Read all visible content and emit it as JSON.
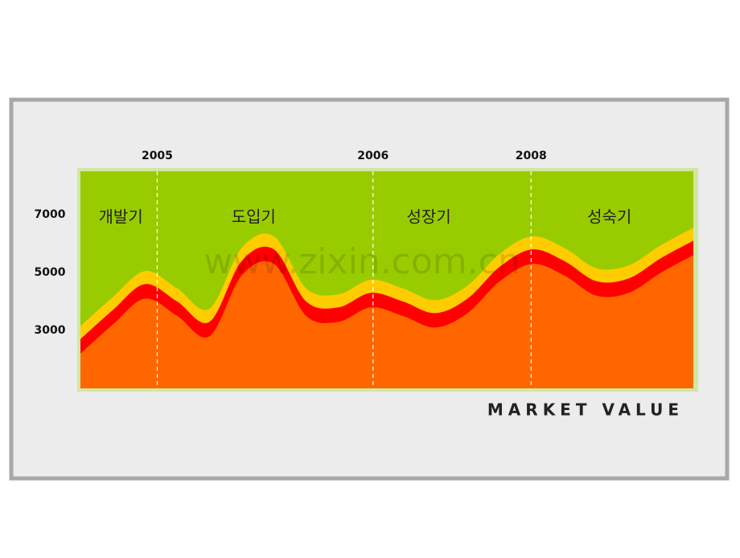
{
  "chart_data": {
    "type": "stacked-area",
    "title": "MARKET VALUE",
    "watermark": "www.zixin.com.cn",
    "categories": [
      null,
      null,
      null,
      null,
      null,
      null,
      null,
      null,
      null,
      null,
      null,
      null,
      null,
      null,
      null,
      null,
      null,
      null,
      null,
      null
    ],
    "series": [
      {
        "color": "#ff6600",
        "values": [
          2200,
          3200,
          4100,
          3500,
          2800,
          4900,
          5300,
          3500,
          3300,
          3800,
          3500,
          3100,
          3600,
          4700,
          5300,
          4900,
          4200,
          4300,
          5000,
          5600
        ]
      },
      {
        "color": "#ff0000",
        "values": [
          500,
          500,
          500,
          500,
          500,
          500,
          500,
          500,
          500,
          500,
          500,
          500,
          500,
          500,
          500,
          500,
          500,
          500,
          500,
          500
        ]
      },
      {
        "color": "#ffcc00",
        "values": [
          450,
          450,
          450,
          450,
          450,
          450,
          450,
          450,
          450,
          450,
          450,
          450,
          450,
          450,
          450,
          450,
          450,
          450,
          450,
          450
        ]
      }
    ],
    "background_color": "#99cc00",
    "ylim": [
      1000,
      8500
    ],
    "yticks": [
      3000,
      5000,
      7000
    ],
    "markers": [
      {
        "label": "2005",
        "position": 2.38
      },
      {
        "label": "2006",
        "position": 9.07
      },
      {
        "label": "2008",
        "position": 13.97
      }
    ],
    "phases": [
      {
        "label": "개발기",
        "position": 1.25
      },
      {
        "label": "도입기",
        "position": 5.37
      },
      {
        "label": "성장기",
        "position": 10.8
      },
      {
        "label": "성숙기",
        "position": 16.4
      }
    ]
  }
}
